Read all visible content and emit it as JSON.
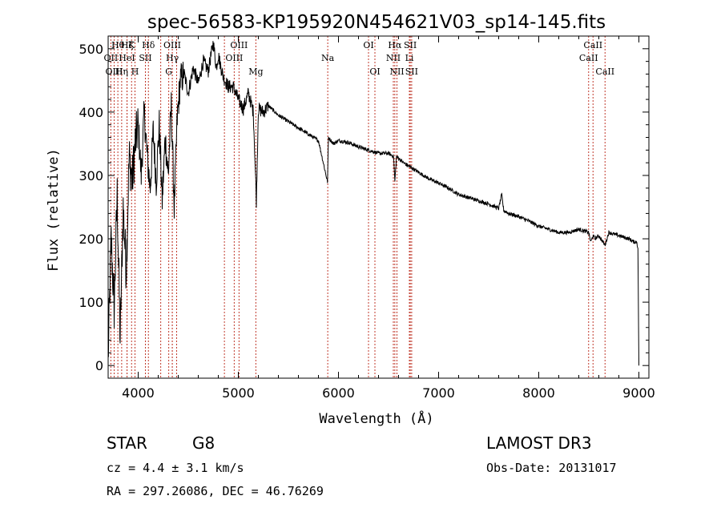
{
  "chart_data": {
    "type": "line",
    "title": "spec-56583-KP195920N454621V03_sp14-145.fits",
    "xlabel": "Wavelength (Å)",
    "ylabel": "Flux (relative)",
    "xlim": [
      3700,
      9100
    ],
    "ylim": [
      -20,
      520
    ],
    "x_ticks": [
      4000,
      5000,
      6000,
      7000,
      8000,
      9000
    ],
    "y_ticks": [
      0,
      100,
      200,
      300,
      400,
      500
    ],
    "series": [
      {
        "name": "flux",
        "color": "#000000",
        "x": [
          3700,
          3730,
          3760,
          3790,
          3820,
          3850,
          3880,
          3910,
          3940,
          3970,
          4000,
          4030,
          4060,
          4090,
          4120,
          4150,
          4180,
          4210,
          4240,
          4270,
          4300,
          4330,
          4360,
          4390,
          4420,
          4460,
          4500,
          4550,
          4600,
          4650,
          4700,
          4750,
          4780,
          4800,
          4850,
          4900,
          4950,
          5000,
          5050,
          5100,
          5150,
          5180,
          5200,
          5250,
          5300,
          5400,
          5500,
          5600,
          5700,
          5800,
          5890,
          5900,
          5950,
          6000,
          6100,
          6200,
          6300,
          6400,
          6500,
          6550,
          6563,
          6580,
          6650,
          6700,
          6800,
          6900,
          7000,
          7100,
          7200,
          7300,
          7400,
          7500,
          7600,
          7630,
          7650,
          7700,
          7800,
          7900,
          8000,
          8100,
          8200,
          8300,
          8400,
          8498,
          8520,
          8542,
          8560,
          8600,
          8662,
          8700,
          8800,
          8900,
          8950,
          8980,
          8990,
          9000
        ],
        "values": [
          10,
          200,
          90,
          270,
          40,
          250,
          150,
          330,
          290,
          350,
          380,
          300,
          400,
          330,
          280,
          370,
          290,
          380,
          260,
          360,
          300,
          410,
          250,
          390,
          450,
          460,
          430,
          470,
          445,
          480,
          465,
          510,
          470,
          490,
          455,
          440,
          440,
          420,
          405,
          430,
          400,
          260,
          405,
          400,
          410,
          395,
          385,
          375,
          365,
          355,
          290,
          360,
          350,
          355,
          352,
          345,
          340,
          335,
          335,
          330,
          290,
          330,
          320,
          315,
          305,
          295,
          288,
          280,
          270,
          265,
          260,
          255,
          248,
          270,
          245,
          240,
          235,
          228,
          220,
          215,
          210,
          210,
          215,
          210,
          195,
          205,
          200,
          205,
          190,
          210,
          205,
          200,
          195,
          195,
          185,
          0
        ]
      }
    ],
    "lines": [
      {
        "label": "Hθ",
        "x": 3797,
        "row": 1
      },
      {
        "label": "OII",
        "x": 3727,
        "row": 2
      },
      {
        "label": "OIII",
        "x": 3760,
        "row": 3
      },
      {
        "label": "Hη",
        "x": 3835,
        "row": 3
      },
      {
        "label": "Hζ",
        "x": 3889,
        "row": 1
      },
      {
        "label": "HeI",
        "x": 3888,
        "row": 2
      },
      {
        "label": "K",
        "x": 3934,
        "row": 1
      },
      {
        "label": "H",
        "x": 3968,
        "row": 3
      },
      {
        "label": "SII",
        "x": 4072,
        "row": 2
      },
      {
        "label": "Hδ",
        "x": 4102,
        "row": 1
      },
      {
        "label": "OIII",
        "x": 4340,
        "row": 1
      },
      {
        "label": "Hγ",
        "x": 4341,
        "row": 2
      },
      {
        "label": "G",
        "x": 4305,
        "row": 3
      },
      {
        "label": "OIII",
        "x": 5007,
        "row": 1
      },
      {
        "label": "OIII",
        "x": 4959,
        "row": 2
      },
      {
        "label": "Mg",
        "x": 5175,
        "row": 3
      },
      {
        "label": "Na",
        "x": 5893,
        "row": 2
      },
      {
        "label": "OI",
        "x": 6300,
        "row": 1
      },
      {
        "label": "OI",
        "x": 6364,
        "row": 3
      },
      {
        "label": "Hα",
        "x": 6563,
        "row": 1
      },
      {
        "label": "SII",
        "x": 6717,
        "row": 1
      },
      {
        "label": "NII",
        "x": 6548,
        "row": 2
      },
      {
        "label": "Li",
        "x": 6708,
        "row": 2
      },
      {
        "label": "NII",
        "x": 6584,
        "row": 3
      },
      {
        "label": "SII",
        "x": 6731,
        "row": 3
      },
      {
        "label": "CaII",
        "x": 8542,
        "row": 1
      },
      {
        "label": "CaII",
        "x": 8498,
        "row": 2
      },
      {
        "label": "CaII",
        "x": 8662,
        "row": 3
      }
    ],
    "extra_line_positions": [
      4861,
      4384,
      4225
    ]
  },
  "info": {
    "object_class": "STAR",
    "subclass": "G8",
    "survey": "LAMOST DR3",
    "cz": "cz = 4.4 ± 3.1 km/s",
    "obs_date": "Obs-Date: 20131017",
    "coords": "RA = 297.26086, DEC =  46.76269"
  }
}
